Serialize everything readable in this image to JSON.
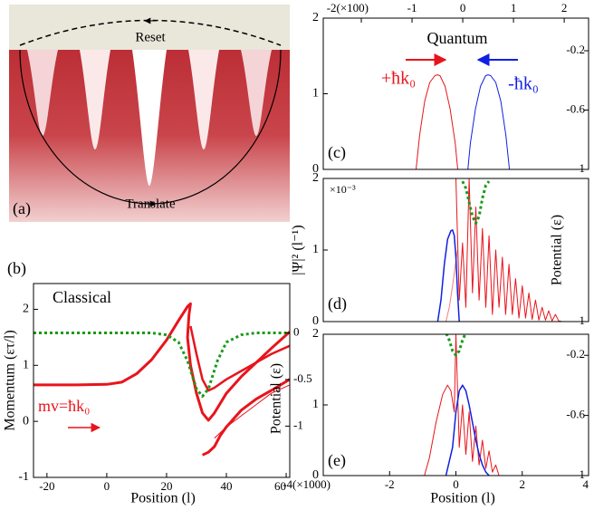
{
  "diagram": {
    "top_label": "Reset",
    "bottom_label": "Translate",
    "panel_label": "(a)"
  },
  "chart_data": [
    {
      "type": "line",
      "panel_label": "(b)",
      "annotations": [
        "Classical",
        "mv=ħk₀"
      ],
      "xlabel": "Position (l)",
      "ylabel": "Momentum (ετ/l)",
      "y2label": "Potential (ε)",
      "xlim": [
        -24.5,
        61.2
      ],
      "xticks": [
        -20,
        0,
        20,
        40,
        60
      ],
      "ylim": [
        -1,
        2.46
      ],
      "yticks": [
        -1,
        0,
        1,
        2
      ],
      "y2lim": [
        -1.55,
        0.53
      ],
      "y2ticks": [
        0,
        -0.5,
        -1
      ],
      "series": [
        {
          "color": "#e8141c",
          "line_width": 3,
          "x": [
            -24.5,
            -10,
            0,
            5,
            10,
            15,
            20,
            24,
            27,
            28,
            27.5,
            27,
            28,
            30,
            32,
            34,
            36,
            40,
            45,
            50,
            55,
            61.2
          ],
          "values": [
            0.65,
            0.65,
            0.66,
            0.7,
            0.85,
            1.1,
            1.45,
            1.8,
            2.05,
            2.1,
            1.9,
            1.5,
            1.0,
            0.5,
            0.15,
            0.02,
            0.15,
            0.5,
            0.8,
            1.05,
            1.3,
            1.6
          ]
        },
        {
          "color": "#e8141c",
          "line_width": 2.5,
          "x": [
            28,
            30,
            32,
            34,
            36,
            40,
            45,
            50,
            55,
            61.2
          ],
          "values": [
            1.7,
            1.2,
            0.75,
            0.55,
            0.6,
            0.75,
            0.9,
            1.05,
            1.2,
            1.35
          ]
        },
        {
          "color": "#e8141c",
          "line_width": 3,
          "x": [
            32,
            34,
            36,
            38,
            40,
            45,
            50,
            55,
            61.2
          ],
          "values": [
            -0.6,
            -0.55,
            -0.45,
            -0.25,
            -0.1,
            0.2,
            0.4,
            0.55,
            0.75
          ]
        },
        {
          "color": "#e8141c",
          "line_width": 1,
          "x": [
            36,
            38,
            40,
            45,
            50,
            55,
            61.2
          ],
          "values": [
            -0.3,
            -0.2,
            -0.1,
            0.1,
            0.3,
            0.5,
            0.65
          ]
        },
        {
          "color": "#1a9a1a",
          "line_width": 3,
          "dashed": true,
          "axis": "y2",
          "x": [
            -24.5,
            15,
            20,
            24,
            27,
            30,
            32,
            34,
            37,
            40,
            45,
            50,
            61.2
          ],
          "values": [
            0,
            0,
            -0.02,
            -0.1,
            -0.3,
            -0.6,
            -0.68,
            -0.6,
            -0.3,
            -0.1,
            -0.02,
            0,
            0
          ]
        }
      ]
    },
    {
      "type": "line",
      "panel_label": "(c)",
      "annotations": [
        "Quantum",
        "+ħk₀",
        "-ħk₀"
      ],
      "xlim": [
        -2.75,
        2.48
      ],
      "xticks": [
        {
          "value": -2,
          "label": "-2(×100)"
        },
        -1,
        0,
        1,
        2
      ],
      "xaxis": "top",
      "ylim": [
        0,
        2
      ],
      "yticks": [
        0,
        1,
        2
      ],
      "y2lim": [
        -1,
        0.02
      ],
      "y2ticks": [
        -0.2,
        -0.6,
        -1
      ],
      "series": [
        {
          "color": "#e8141c",
          "line_width": 1,
          "x": [
            -0.92,
            -0.85,
            -0.75,
            -0.65,
            -0.55,
            -0.5,
            -0.45,
            -0.35,
            -0.25,
            -0.15,
            -0.1
          ],
          "values": [
            0,
            0.45,
            0.9,
            1.15,
            1.24,
            1.25,
            1.24,
            1.1,
            0.8,
            0.35,
            0
          ]
        },
        {
          "color": "#1020e0",
          "line_width": 1,
          "x": [
            0.1,
            0.15,
            0.25,
            0.35,
            0.45,
            0.5,
            0.55,
            0.65,
            0.75,
            0.85,
            0.92
          ],
          "values": [
            0,
            0.35,
            0.8,
            1.1,
            1.24,
            1.25,
            1.24,
            1.15,
            0.9,
            0.45,
            0
          ]
        }
      ]
    },
    {
      "type": "line",
      "panel_label": "(d)",
      "annotations": [
        "×10⁻³"
      ],
      "ylabel": "|Ψ|² (l⁻¹)",
      "y2label": "Potential (ε)",
      "xlim": [
        -4,
        4
      ],
      "ylim": [
        0,
        2
      ],
      "yticks": [
        0,
        1,
        2
      ],
      "y2lim": [
        -1,
        0.02
      ],
      "y2ticks": [
        -1
      ],
      "series": [
        {
          "color": "#f08080",
          "line_width": 1,
          "x": [
            -0.3,
            -0.2,
            -0.1,
            0,
            0.05
          ],
          "values": [
            0,
            0.2,
            0.5,
            0.85,
            1.0
          ]
        },
        {
          "color": "#1020e0",
          "line_width": 1.5,
          "x": [
            -0.55,
            -0.45,
            -0.35,
            -0.25,
            -0.15,
            -0.1,
            -0.05,
            0,
            0.05,
            0.1
          ],
          "values": [
            0,
            0.3,
            0.8,
            1.15,
            1.27,
            1.28,
            1.2,
            0.9,
            0.4,
            0
          ]
        },
        {
          "color": "#e8141c",
          "line_width": 1,
          "x": [
            0,
            0.1,
            0.2,
            0.3,
            0.4,
            0.5,
            0.6,
            0.7,
            0.8,
            0.9,
            1.0,
            1.1,
            1.2,
            1.3,
            1.4,
            1.5,
            1.6,
            1.7,
            1.8,
            1.9,
            2.0,
            2.1,
            2.2,
            2.3,
            2.4,
            2.5,
            2.6,
            2.7,
            2.8,
            2.9,
            3.0,
            3.1,
            3.2
          ],
          "values": [
            2,
            0.3,
            1.1,
            0.2,
            2,
            0.4,
            1.6,
            0.3,
            1.3,
            0.2,
            1.2,
            0.1,
            1.0,
            0.2,
            0.9,
            0.1,
            0.8,
            0.1,
            0.6,
            0.05,
            0.5,
            0.05,
            0.4,
            0.03,
            0.3,
            0.02,
            0.2,
            0.02,
            0.15,
            0.01,
            0.1,
            0.01,
            0
          ]
        },
        {
          "color": "#1a9a1a",
          "line_width": 3,
          "dashed": true,
          "axis": "y2",
          "x": [
            0.2,
            0.3,
            0.4,
            0.5,
            0.6,
            0.7,
            0.8,
            0.9,
            1.0
          ],
          "values": [
            0,
            -0.05,
            -0.15,
            -0.25,
            -0.3,
            -0.25,
            -0.12,
            -0.03,
            0
          ]
        }
      ]
    },
    {
      "type": "line",
      "panel_label": "(e)",
      "xlabel": "Position (l)",
      "xlim": [
        -4,
        4
      ],
      "xticks": [
        {
          "value": -4,
          "label": "-4(×1000)"
        },
        -2,
        0,
        2,
        4
      ],
      "ylim": [
        0,
        2
      ],
      "yticks": [
        0,
        1,
        2
      ],
      "y2lim": [
        -1,
        -0.06
      ],
      "y2ticks": [
        -0.2,
        -0.6,
        -1
      ],
      "series": [
        {
          "color": "#e8141c",
          "line_width": 1,
          "x": [
            -0.95,
            -0.8,
            -0.6,
            -0.4,
            -0.25,
            -0.15,
            -0.05,
            0,
            0.1,
            0.2,
            0.3,
            0.4,
            0.5,
            0.6,
            0.7,
            0.8,
            0.9,
            1.0,
            1.1,
            1.2,
            1.3
          ],
          "values": [
            0,
            0.25,
            0.75,
            1.15,
            1.28,
            1.2,
            0.9,
            2,
            0.4,
            1.0,
            0.3,
            0.9,
            0.2,
            0.7,
            0.15,
            0.5,
            0.1,
            0.35,
            0.05,
            0.15,
            0
          ]
        },
        {
          "color": "#1020e0",
          "line_width": 1.5,
          "x": [
            -0.3,
            -0.1,
            0,
            0.1,
            0.2,
            0.3,
            0.4,
            0.5,
            0.6,
            0.7,
            0.8,
            0.9,
            1.0
          ],
          "values": [
            0,
            0.4,
            0.9,
            1.2,
            1.28,
            1.2,
            1.0,
            0.75,
            0.5,
            0.3,
            0.15,
            0.05,
            0
          ]
        },
        {
          "color": "#1a9a1a",
          "line_width": 3,
          "dashed": true,
          "axis": "y2",
          "x": [
            -0.5,
            -0.3,
            -0.2,
            -0.1,
            0,
            0.1,
            0.2,
            0.3,
            0.5
          ],
          "values": [
            0,
            -0.05,
            -0.1,
            -0.17,
            -0.2,
            -0.17,
            -0.1,
            -0.05,
            0
          ]
        }
      ]
    }
  ]
}
